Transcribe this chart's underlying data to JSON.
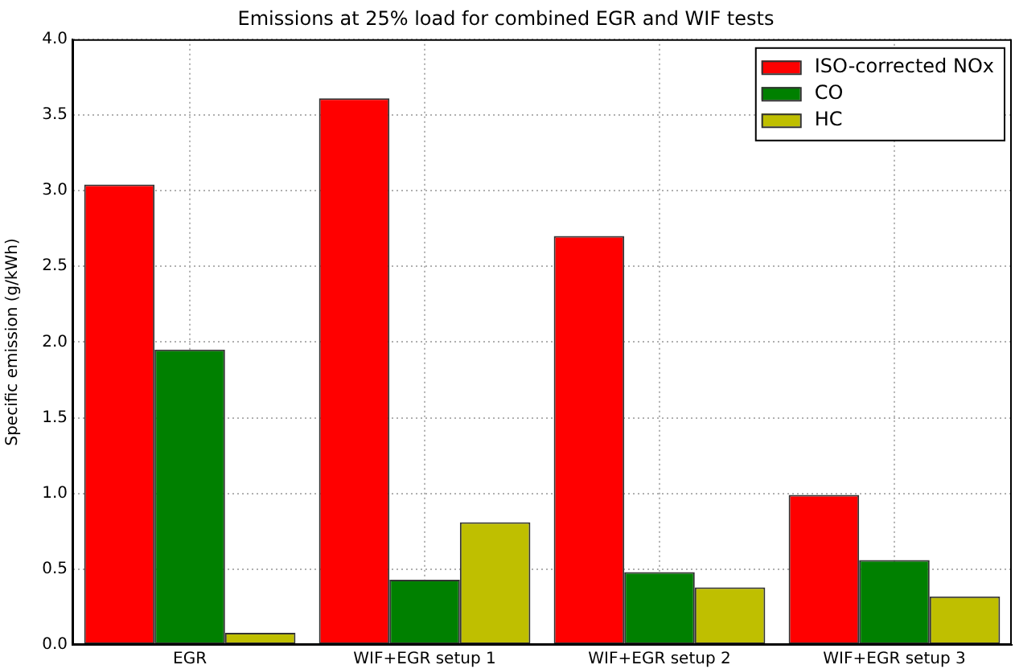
{
  "chart_data": {
    "type": "bar",
    "title": "Emissions at 25% load for combined EGR and WIF tests",
    "ylabel": "Specific emission (g/kWh)",
    "categories": [
      "EGR",
      "WIF+EGR setup 1",
      "WIF+EGR setup 2",
      "WIF+EGR setup 3"
    ],
    "series": [
      {
        "name": "ISO-corrected NOx",
        "color": "#ff0000",
        "values": [
          3.04,
          3.61,
          2.7,
          0.99
        ]
      },
      {
        "name": "CO",
        "color": "#008000",
        "values": [
          1.95,
          0.43,
          0.48,
          0.56
        ]
      },
      {
        "name": "HC",
        "color": "#bfbf00",
        "values": [
          0.08,
          0.81,
          0.38,
          0.32
        ]
      }
    ],
    "ylim": [
      0,
      4
    ],
    "yticks": [
      {
        "value": 0,
        "label": "0.0"
      },
      {
        "value": 0.5,
        "label": "0.5"
      },
      {
        "value": 1,
        "label": "1.0"
      },
      {
        "value": 1.5,
        "label": "1.5"
      },
      {
        "value": 2,
        "label": "2.0"
      },
      {
        "value": 2.5,
        "label": "2.5"
      },
      {
        "value": 3,
        "label": "3.0"
      },
      {
        "value": 3.5,
        "label": "3.5"
      },
      {
        "value": 4,
        "label": "4.0"
      }
    ],
    "grid": true,
    "legend": "top right"
  }
}
